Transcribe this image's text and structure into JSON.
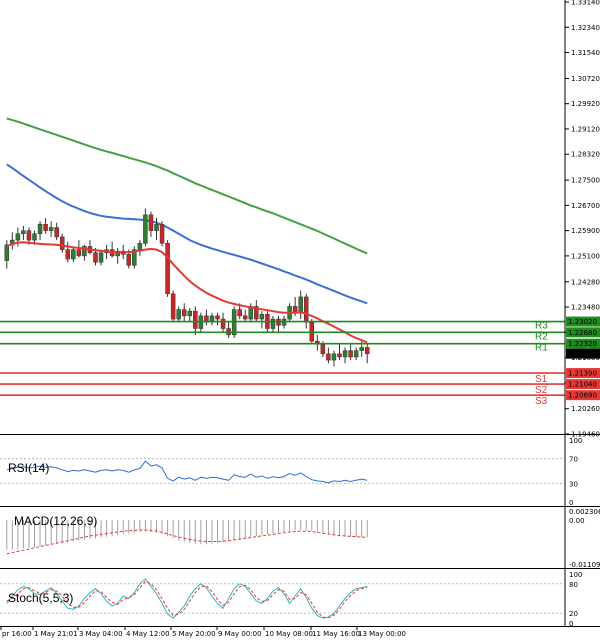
{
  "chart_data": [
    {
      "type": "candlestick",
      "title": "",
      "ylim": [
        1.1946,
        1.3314
      ],
      "y_ticks": [
        "1.33140",
        "1.32340",
        "1.31540",
        "1.30720",
        "1.29920",
        "1.29120",
        "1.28320",
        "1.27500",
        "1.26700",
        "1.25900",
        "1.25100",
        "1.24280",
        "1.23480",
        "1.22680",
        "1.21880",
        "1.21080",
        "1.20260",
        "1.19460"
      ],
      "x_ticks": [
        "pr 16:00",
        "1 May 21:01",
        "3 May 04:00",
        "4 May 12:00",
        "5 May 20:00",
        "9 May 00:00",
        "10 May 08:00",
        "11 May 16:00",
        "13 May 00:00"
      ],
      "current_price": "1.22004",
      "colors": {
        "up": "#2e7d32",
        "down": "#c62828",
        "ma_fast": "#e53935",
        "ma_mid": "#3b6fd6",
        "ma_slow": "#43a047",
        "support": "#e53935",
        "resistance": "#1f8a1f"
      },
      "levels": {
        "resistance": [
          {
            "name": "R3",
            "value": 1.2302,
            "label": "1.23020"
          },
          {
            "name": "R2",
            "value": 1.2268,
            "label": "1.22680"
          },
          {
            "name": "R1",
            "value": 1.2232,
            "label": "1.22320"
          }
        ],
        "support": [
          {
            "name": "S1",
            "value": 1.2139,
            "label": "1.21390"
          },
          {
            "name": "S2",
            "value": 1.2104,
            "label": "1.21040"
          },
          {
            "name": "S3",
            "value": 1.2069,
            "label": "1.20690"
          }
        ]
      },
      "ohlc": [
        [
          1.2495,
          1.256,
          1.247,
          1.2545
        ],
        [
          1.2545,
          1.2585,
          1.253,
          1.256
        ],
        [
          1.256,
          1.26,
          1.254,
          1.258
        ],
        [
          1.258,
          1.2605,
          1.256,
          1.259
        ],
        [
          1.259,
          1.26,
          1.2545,
          1.256
        ],
        [
          1.256,
          1.259,
          1.2545,
          1.258
        ],
        [
          1.258,
          1.262,
          1.256,
          1.261
        ],
        [
          1.261,
          1.263,
          1.258,
          1.259
        ],
        [
          1.259,
          1.262,
          1.257,
          1.26
        ],
        [
          1.26,
          1.2615,
          1.256,
          1.257
        ],
        [
          1.257,
          1.258,
          1.252,
          1.253
        ],
        [
          1.253,
          1.2555,
          1.249,
          1.25
        ],
        [
          1.25,
          1.254,
          1.249,
          1.253
        ],
        [
          1.253,
          1.256,
          1.2505,
          1.251
        ],
        [
          1.251,
          1.2545,
          1.2495,
          1.254
        ],
        [
          1.254,
          1.256,
          1.2515,
          1.252
        ],
        [
          1.252,
          1.2535,
          1.248,
          1.249
        ],
        [
          1.249,
          1.253,
          1.248,
          1.252
        ],
        [
          1.252,
          1.2545,
          1.25,
          1.253
        ],
        [
          1.253,
          1.2555,
          1.2505,
          1.251
        ],
        [
          1.251,
          1.2535,
          1.2485,
          1.2525
        ],
        [
          1.2525,
          1.2545,
          1.25,
          1.2515
        ],
        [
          1.2515,
          1.253,
          1.247,
          1.248
        ],
        [
          1.248,
          1.254,
          1.247,
          1.253
        ],
        [
          1.253,
          1.256,
          1.251,
          1.255
        ],
        [
          1.255,
          1.266,
          1.254,
          1.264
        ],
        [
          1.264,
          1.265,
          1.257,
          1.259
        ],
        [
          1.259,
          1.263,
          1.256,
          1.261
        ],
        [
          1.261,
          1.262,
          1.254,
          1.255
        ],
        [
          1.255,
          1.256,
          1.238,
          1.239
        ],
        [
          1.239,
          1.24,
          1.23,
          1.231
        ],
        [
          1.231,
          1.235,
          1.23,
          1.234
        ],
        [
          1.234,
          1.236,
          1.23,
          1.232
        ],
        [
          1.232,
          1.2345,
          1.23,
          1.2335
        ],
        [
          1.2335,
          1.235,
          1.226,
          1.228
        ],
        [
          1.228,
          1.233,
          1.227,
          1.232
        ],
        [
          1.232,
          1.234,
          1.229,
          1.23
        ],
        [
          1.23,
          1.233,
          1.229,
          1.232
        ],
        [
          1.232,
          1.233,
          1.229,
          1.231
        ],
        [
          1.231,
          1.233,
          1.227,
          1.228
        ],
        [
          1.228,
          1.23,
          1.225,
          1.226
        ],
        [
          1.226,
          1.235,
          1.225,
          1.234
        ],
        [
          1.234,
          1.236,
          1.231,
          1.232
        ],
        [
          1.232,
          1.234,
          1.23,
          1.231
        ],
        [
          1.231,
          1.236,
          1.23,
          1.235
        ],
        [
          1.235,
          1.237,
          1.23,
          1.231
        ],
        [
          1.231,
          1.2335,
          1.228,
          1.2325
        ],
        [
          1.2325,
          1.234,
          1.227,
          1.228
        ],
        [
          1.228,
          1.232,
          1.227,
          1.231
        ],
        [
          1.231,
          1.232,
          1.227,
          1.229
        ],
        [
          1.229,
          1.232,
          1.228,
          1.231
        ],
        [
          1.231,
          1.236,
          1.23,
          1.235
        ],
        [
          1.235,
          1.238,
          1.232,
          1.233
        ],
        [
          1.233,
          1.24,
          1.231,
          1.238
        ],
        [
          1.238,
          1.239,
          1.228,
          1.23
        ],
        [
          1.23,
          1.231,
          1.223,
          1.224
        ],
        [
          1.224,
          1.226,
          1.221,
          1.223
        ],
        [
          1.223,
          1.224,
          1.219,
          1.22
        ],
        [
          1.22,
          1.222,
          1.217,
          1.218
        ],
        [
          1.218,
          1.221,
          1.216,
          1.22
        ],
        [
          1.22,
          1.223,
          1.218,
          1.219
        ],
        [
          1.219,
          1.222,
          1.217,
          1.221
        ],
        [
          1.221,
          1.223,
          1.218,
          1.219
        ],
        [
          1.219,
          1.222,
          1.218,
          1.221
        ],
        [
          1.221,
          1.224,
          1.219,
          1.222
        ],
        [
          1.222,
          1.223,
          1.217,
          1.22
        ]
      ],
      "ma_fast": [
        1.254,
        1.2548,
        1.2552,
        1.2553,
        1.2551,
        1.255,
        1.2548,
        1.2547,
        1.2546,
        1.2545,
        1.2543,
        1.254,
        1.2537,
        1.2535,
        1.2533,
        1.253,
        1.2528,
        1.2526,
        1.2524,
        1.2522,
        1.2521,
        1.2521,
        1.2522,
        1.2524,
        1.2527,
        1.253,
        1.2532,
        1.253,
        1.2522,
        1.2505,
        1.2484,
        1.2465,
        1.2447,
        1.243,
        1.2416,
        1.2404,
        1.2393,
        1.2384,
        1.2376,
        1.2368,
        1.2362,
        1.2358,
        1.2354,
        1.235,
        1.2347,
        1.2344,
        1.2341,
        1.2338,
        1.2335,
        1.2332,
        1.233,
        1.233,
        1.233,
        1.2331,
        1.2327,
        1.232,
        1.2312,
        1.2303,
        1.2295,
        1.2286,
        1.2277,
        1.2268,
        1.2258,
        1.225,
        1.2243,
        1.2236
      ],
      "ma_mid": [
        1.28,
        1.2788,
        1.2776,
        1.2763,
        1.2751,
        1.2739,
        1.2727,
        1.2715,
        1.2704,
        1.2693,
        1.2683,
        1.2674,
        1.2666,
        1.2659,
        1.2652,
        1.2646,
        1.2641,
        1.2637,
        1.2634,
        1.2632,
        1.263,
        1.2628,
        1.2627,
        1.2626,
        1.2625,
        1.2623,
        1.262,
        1.2615,
        1.2608,
        1.26,
        1.259,
        1.258,
        1.257,
        1.256,
        1.2552,
        1.2545,
        1.2539,
        1.2533,
        1.2528,
        1.2523,
        1.2518,
        1.2513,
        1.2508,
        1.2503,
        1.2498,
        1.2492,
        1.2486,
        1.248,
        1.2474,
        1.2468,
        1.2461,
        1.2455,
        1.2448,
        1.2442,
        1.2435,
        1.2428,
        1.242,
        1.2413,
        1.2406,
        1.2399,
        1.2392,
        1.2385,
        1.2378,
        1.2372,
        1.2366,
        1.236
      ],
      "ma_slow": [
        1.2945,
        1.294,
        1.2935,
        1.2929,
        1.2923,
        1.2917,
        1.2911,
        1.2905,
        1.2899,
        1.2893,
        1.2887,
        1.2881,
        1.2875,
        1.2869,
        1.2863,
        1.2857,
        1.2851,
        1.2846,
        1.2841,
        1.2836,
        1.2831,
        1.2826,
        1.2821,
        1.2816,
        1.2811,
        1.2806,
        1.28,
        1.2794,
        1.2787,
        1.278,
        1.2772,
        1.2764,
        1.2756,
        1.2748,
        1.274,
        1.2733,
        1.2726,
        1.2719,
        1.2712,
        1.2705,
        1.2698,
        1.2691,
        1.2684,
        1.2677,
        1.267,
        1.2664,
        1.2657,
        1.2651,
        1.2645,
        1.2638,
        1.2631,
        1.2624,
        1.2617,
        1.261,
        1.2603,
        1.2596,
        1.2589,
        1.2581,
        1.2573,
        1.2565,
        1.2557,
        1.2549,
        1.2541,
        1.2533,
        1.2525,
        1.2518
      ]
    },
    {
      "type": "line",
      "title": "RSI(14)",
      "ylim": [
        0,
        100
      ],
      "y_ticks": [
        "100",
        "70",
        "30",
        "0"
      ],
      "color": "#2f6fd1",
      "values": [
        52,
        54,
        56,
        57,
        55,
        56,
        58,
        56,
        57,
        55,
        52,
        49,
        51,
        50,
        52,
        50,
        48,
        51,
        52,
        50,
        52,
        51,
        48,
        52,
        54,
        66,
        58,
        60,
        55,
        38,
        34,
        40,
        37,
        39,
        35,
        40,
        38,
        40,
        39,
        37,
        35,
        44,
        41,
        40,
        45,
        40,
        42,
        38,
        41,
        39,
        41,
        46,
        43,
        47,
        41,
        36,
        34,
        33,
        31,
        34,
        33,
        35,
        33,
        35,
        37,
        35
      ]
    },
    {
      "type": "bar+line",
      "title": "MACD(12,26,9)",
      "ylim": [
        -0.011092,
        0.002306
      ],
      "y_ticks": [
        "0.002306",
        "0.00",
        "-0.011092"
      ],
      "colors": {
        "histogram": "#a0a0a0",
        "signal": "#e53935"
      },
      "histogram": [
        -0.0075,
        -0.0074,
        -0.0073,
        -0.0071,
        -0.007,
        -0.0068,
        -0.0066,
        -0.0064,
        -0.0062,
        -0.006,
        -0.0058,
        -0.0056,
        -0.0054,
        -0.0052,
        -0.005,
        -0.0048,
        -0.0046,
        -0.0044,
        -0.0042,
        -0.004,
        -0.0038,
        -0.0036,
        -0.0034,
        -0.0032,
        -0.003,
        -0.0029,
        -0.003,
        -0.0032,
        -0.0035,
        -0.004,
        -0.0046,
        -0.0051,
        -0.0055,
        -0.0058,
        -0.006,
        -0.0061,
        -0.0061,
        -0.006,
        -0.0058,
        -0.0056,
        -0.0054,
        -0.0051,
        -0.0048,
        -0.0045,
        -0.0042,
        -0.004,
        -0.0038,
        -0.0036,
        -0.0034,
        -0.0032,
        -0.003,
        -0.0028,
        -0.0026,
        -0.0025,
        -0.0026,
        -0.0028,
        -0.0031,
        -0.0034,
        -0.0037,
        -0.0039,
        -0.0041,
        -0.0042,
        -0.0043,
        -0.0043,
        -0.0044,
        -0.0044
      ],
      "signal": [
        -0.0085,
        -0.0082,
        -0.0079,
        -0.0076,
        -0.0073,
        -0.007,
        -0.0067,
        -0.0064,
        -0.0061,
        -0.0058,
        -0.0055,
        -0.0052,
        -0.0049,
        -0.0046,
        -0.0043,
        -0.004,
        -0.0038,
        -0.0036,
        -0.0034,
        -0.0032,
        -0.003,
        -0.0028,
        -0.0027,
        -0.0026,
        -0.0025,
        -0.0025,
        -0.0026,
        -0.0028,
        -0.0031,
        -0.0035,
        -0.0039,
        -0.0043,
        -0.0046,
        -0.0049,
        -0.0051,
        -0.0053,
        -0.0054,
        -0.0054,
        -0.0054,
        -0.0053,
        -0.0052,
        -0.005,
        -0.0048,
        -0.0046,
        -0.0044,
        -0.0042,
        -0.004,
        -0.0038,
        -0.0036,
        -0.0034,
        -0.0032,
        -0.003,
        -0.0029,
        -0.0028,
        -0.0028,
        -0.0029,
        -0.0031,
        -0.0033,
        -0.0035,
        -0.0037,
        -0.0039,
        -0.004,
        -0.0041,
        -0.0042,
        -0.0043,
        -0.0043
      ]
    },
    {
      "type": "line",
      "title": "Stoch(5,5,3)",
      "ylim": [
        0,
        100
      ],
      "y_ticks": [
        "100",
        "80",
        "20",
        "0"
      ],
      "colors": {
        "k": "#2fb3c7",
        "d": "#e53935"
      },
      "k": [
        40,
        55,
        68,
        75,
        70,
        60,
        58,
        65,
        72,
        60,
        45,
        30,
        28,
        35,
        50,
        62,
        70,
        60,
        45,
        35,
        40,
        55,
        50,
        62,
        80,
        90,
        75,
        60,
        40,
        18,
        10,
        22,
        35,
        55,
        70,
        80,
        72,
        55,
        40,
        30,
        50,
        70,
        80,
        75,
        60,
        45,
        40,
        50,
        65,
        72,
        60,
        40,
        55,
        70,
        52,
        30,
        15,
        10,
        12,
        20,
        35,
        50,
        62,
        70,
        72,
        75
      ],
      "d": [
        45,
        50,
        60,
        70,
        72,
        66,
        60,
        62,
        68,
        65,
        55,
        40,
        32,
        32,
        42,
        55,
        66,
        64,
        52,
        42,
        38,
        48,
        52,
        58,
        72,
        85,
        80,
        68,
        50,
        30,
        15,
        18,
        28,
        45,
        62,
        74,
        76,
        64,
        48,
        36,
        42,
        60,
        74,
        77,
        68,
        52,
        44,
        46,
        58,
        68,
        65,
        48,
        50,
        62,
        58,
        40,
        22,
        12,
        11,
        16,
        28,
        44,
        56,
        66,
        70,
        73
      ]
    }
  ]
}
